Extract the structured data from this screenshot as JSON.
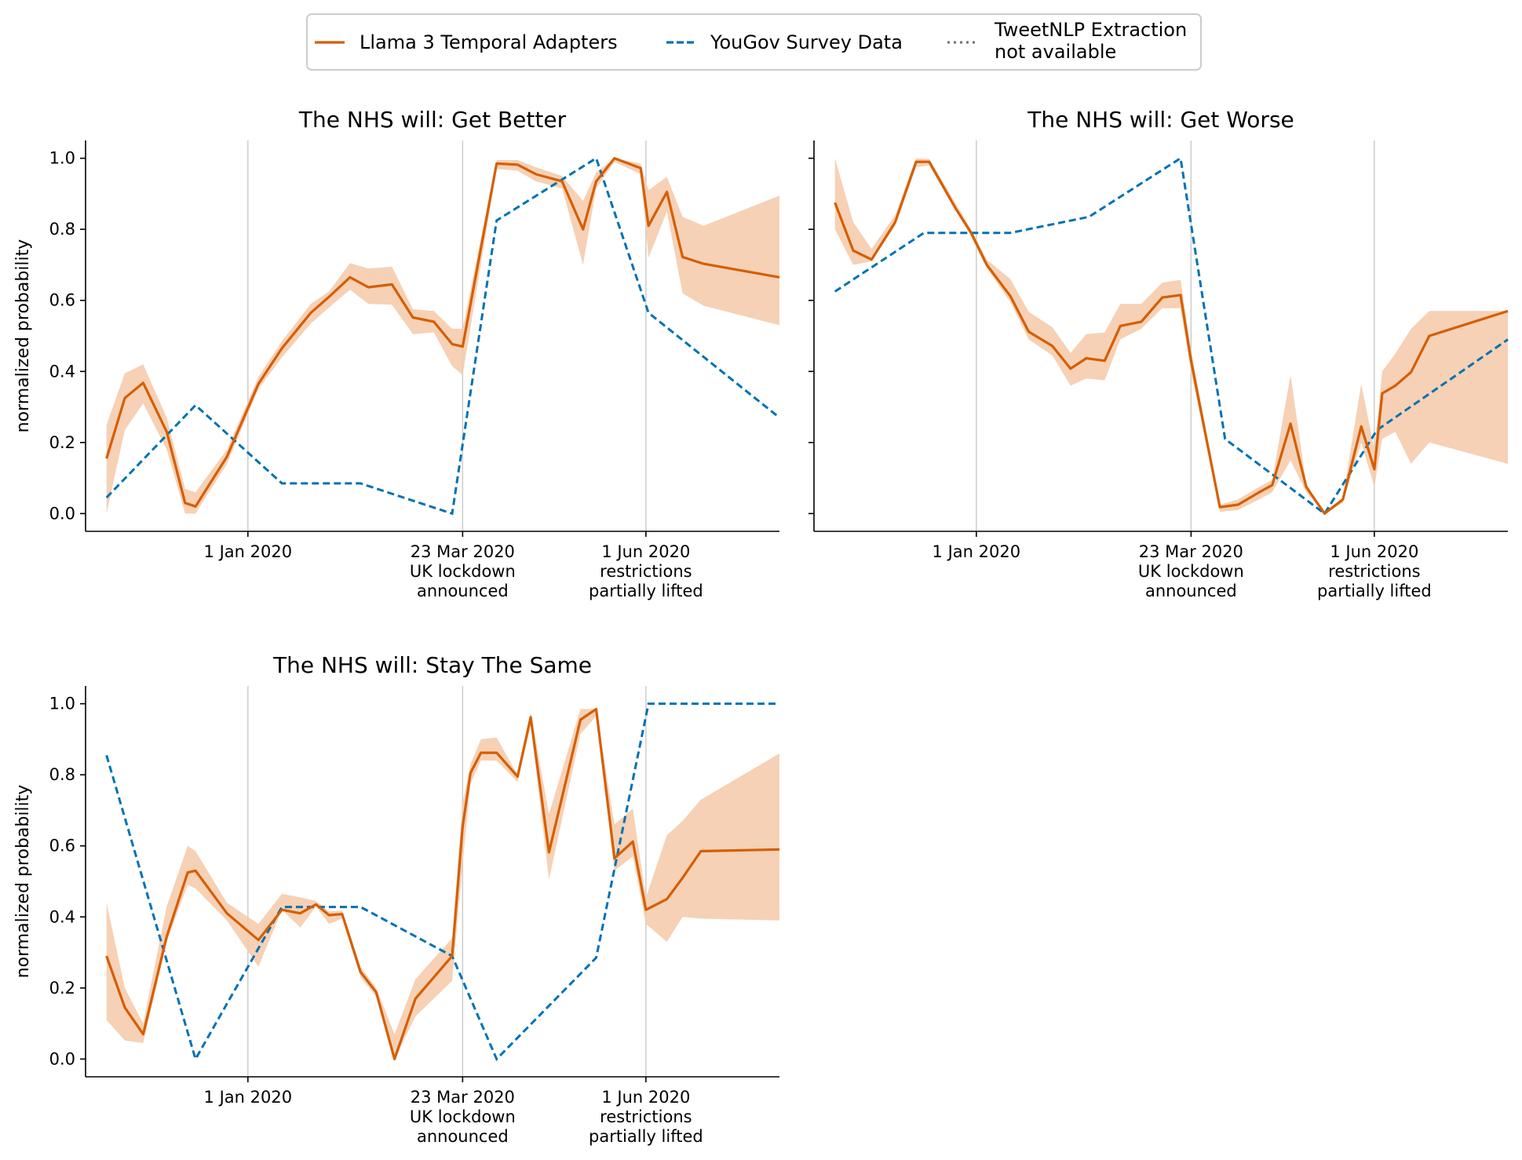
{
  "chart_data": {
    "type": "line",
    "legend": {
      "placement": "top-center",
      "entries": [
        {
          "label": "Llama 3 Temporal Adapters",
          "style": "solid",
          "color": "#d55e00"
        },
        {
          "label": "YouGov Survey Data",
          "style": "dashed",
          "color": "#0072b2"
        },
        {
          "label_lines": [
            "TweetNLP Extraction",
            "not available"
          ],
          "style": "dotted",
          "color": "#777777"
        }
      ]
    },
    "colors": {
      "llama": "#d55e00",
      "band": "#f4c9a8",
      "yougov": "#0072b2",
      "vline": "#cccccc"
    },
    "ylabel": "normalized probability",
    "ylim": [
      -0.05,
      1.05
    ],
    "yticks": [
      "0.0",
      "0.2",
      "0.4",
      "0.6",
      "0.8",
      "1.0"
    ],
    "xlim": [
      "2019-10-31",
      "2020-07-22"
    ],
    "events": [
      {
        "date": "2020-01-01",
        "label_lines": [
          "1 Jan 2020"
        ]
      },
      {
        "date": "2020-03-23",
        "label_lines": [
          "23 Mar 2020",
          "UK lockdown",
          "announced"
        ]
      },
      {
        "date": "2020-06-01",
        "label_lines": [
          "1 Jun 2020",
          "restrictions",
          "partially lifted"
        ]
      }
    ],
    "panels": [
      {
        "title": "The NHS will: Get Better",
        "llama": {
          "x": [
            "2019-11-08",
            "2019-11-15",
            "2019-11-22",
            "2019-12-01",
            "2019-12-08",
            "2019-12-12",
            "2019-12-24",
            "2020-01-05",
            "2020-01-14",
            "2020-01-25",
            "2020-02-01",
            "2020-02-09",
            "2020-02-16",
            "2020-02-25",
            "2020-03-04",
            "2020-03-12",
            "2020-03-19",
            "2020-03-23",
            "2020-04-05",
            "2020-04-13",
            "2020-04-20",
            "2020-04-30",
            "2020-05-08",
            "2020-05-13",
            "2020-05-20",
            "2020-05-30",
            "2020-06-02",
            "2020-06-09",
            "2020-06-15",
            "2020-06-23",
            "2020-07-22"
          ],
          "y": [
            0.155,
            0.325,
            0.368,
            0.23,
            0.03,
            0.02,
            0.16,
            0.365,
            0.465,
            0.565,
            0.61,
            0.665,
            0.637,
            0.645,
            0.552,
            0.54,
            0.477,
            0.47,
            0.985,
            0.982,
            0.955,
            0.935,
            0.8,
            0.935,
            1.0,
            0.972,
            0.81,
            0.905,
            0.722,
            0.703,
            0.665
          ],
          "lo": [
            0.0,
            0.235,
            0.31,
            0.18,
            0.0,
            0.0,
            0.14,
            0.35,
            0.44,
            0.535,
            0.58,
            0.63,
            0.59,
            0.588,
            0.505,
            0.51,
            0.415,
            0.39,
            0.97,
            0.965,
            0.935,
            0.915,
            0.7,
            0.915,
            0.99,
            0.955,
            0.72,
            0.85,
            0.62,
            0.585,
            0.53
          ],
          "hi": [
            0.25,
            0.395,
            0.42,
            0.27,
            0.07,
            0.06,
            0.18,
            0.385,
            0.485,
            0.59,
            0.625,
            0.705,
            0.69,
            0.695,
            0.575,
            0.57,
            0.52,
            0.52,
            0.995,
            0.995,
            0.975,
            0.95,
            0.88,
            0.96,
            1.0,
            0.985,
            0.91,
            0.948,
            0.835,
            0.81,
            0.895
          ]
        },
        "yougov": {
          "x": [
            "2019-11-08",
            "2019-12-12",
            "2020-01-14",
            "2020-02-13",
            "2020-03-19",
            "2020-04-05",
            "2020-05-13",
            "2020-06-02",
            "2020-07-22"
          ],
          "y": [
            0.045,
            0.305,
            0.085,
            0.085,
            0.0,
            0.825,
            1.0,
            0.565,
            0.27
          ]
        }
      },
      {
        "title": "The NHS will: Get Worse",
        "llama": {
          "x": [
            "2019-11-08",
            "2019-11-15",
            "2019-11-22",
            "2019-12-01",
            "2019-12-09",
            "2019-12-14",
            "2019-12-24",
            "2019-12-30",
            "2020-01-05",
            "2020-01-14",
            "2020-01-21",
            "2020-01-30",
            "2020-02-06",
            "2020-02-12",
            "2020-02-19",
            "2020-02-25",
            "2020-03-04",
            "2020-03-12",
            "2020-03-19",
            "2020-03-23",
            "2020-04-03",
            "2020-04-10",
            "2020-04-18",
            "2020-04-23",
            "2020-04-30",
            "2020-05-06",
            "2020-05-13",
            "2020-05-20",
            "2020-05-27",
            "2020-06-01",
            "2020-06-04",
            "2020-06-09",
            "2020-06-15",
            "2020-06-22",
            "2020-07-22"
          ],
          "y": [
            0.875,
            0.74,
            0.715,
            0.82,
            0.99,
            0.99,
            0.86,
            0.79,
            0.7,
            0.612,
            0.512,
            0.472,
            0.408,
            0.437,
            0.43,
            0.528,
            0.54,
            0.608,
            0.615,
            0.43,
            0.018,
            0.025,
            0.06,
            0.08,
            0.253,
            0.075,
            0.0,
            0.04,
            0.245,
            0.125,
            0.338,
            0.36,
            0.398,
            0.5,
            0.57
          ],
          "lo": [
            0.8,
            0.7,
            0.71,
            0.81,
            0.975,
            0.98,
            0.855,
            0.78,
            0.69,
            0.595,
            0.49,
            0.445,
            0.36,
            0.38,
            0.375,
            0.49,
            0.52,
            0.578,
            0.578,
            0.4,
            0.005,
            0.01,
            0.04,
            0.06,
            0.15,
            0.06,
            0.0,
            0.03,
            0.2,
            0.075,
            0.21,
            0.23,
            0.14,
            0.2,
            0.14
          ],
          "hi": [
            1.0,
            0.82,
            0.745,
            0.84,
            1.0,
            0.998,
            0.875,
            0.8,
            0.715,
            0.66,
            0.568,
            0.525,
            0.452,
            0.505,
            0.51,
            0.59,
            0.59,
            0.65,
            0.658,
            0.46,
            0.025,
            0.04,
            0.075,
            0.095,
            0.39,
            0.085,
            0.0,
            0.045,
            0.365,
            0.18,
            0.4,
            0.45,
            0.52,
            0.57,
            0.57
          ]
        },
        "yougov": {
          "x": [
            "2019-11-08",
            "2019-12-12",
            "2020-01-14",
            "2020-02-13",
            "2020-03-19",
            "2020-04-05",
            "2020-05-13",
            "2020-06-02",
            "2020-07-22"
          ],
          "y": [
            0.625,
            0.79,
            0.79,
            0.835,
            1.0,
            0.21,
            0.0,
            0.235,
            0.49
          ]
        }
      },
      {
        "title": "The NHS will: Stay The Same",
        "llama": {
          "x": [
            "2019-11-08",
            "2019-11-15",
            "2019-11-22",
            "2019-12-01",
            "2019-12-09",
            "2019-12-12",
            "2019-12-24",
            "2020-01-05",
            "2020-01-14",
            "2020-01-21",
            "2020-01-27",
            "2020-02-01",
            "2020-02-06",
            "2020-02-13",
            "2020-02-19",
            "2020-02-26",
            "2020-03-05",
            "2020-03-19",
            "2020-03-23",
            "2020-03-26",
            "2020-03-30",
            "2020-04-05",
            "2020-04-13",
            "2020-04-18",
            "2020-04-25",
            "2020-05-07",
            "2020-05-13",
            "2020-05-20",
            "2020-05-27",
            "2020-06-01",
            "2020-06-09",
            "2020-06-15",
            "2020-06-22",
            "2020-07-22"
          ],
          "y": [
            0.29,
            0.145,
            0.07,
            0.345,
            0.525,
            0.53,
            0.41,
            0.335,
            0.42,
            0.41,
            0.435,
            0.405,
            0.408,
            0.245,
            0.188,
            0.0,
            0.17,
            0.29,
            0.655,
            0.805,
            0.862,
            0.862,
            0.795,
            0.962,
            0.582,
            0.955,
            0.985,
            0.565,
            0.612,
            0.42,
            0.45,
            0.51,
            0.585,
            0.59
          ],
          "lo": [
            0.11,
            0.052,
            0.045,
            0.33,
            0.49,
            0.48,
            0.39,
            0.26,
            0.42,
            0.37,
            0.43,
            0.38,
            0.395,
            0.23,
            0.175,
            0.0,
            0.12,
            0.22,
            0.55,
            0.775,
            0.84,
            0.84,
            0.78,
            0.94,
            0.505,
            0.915,
            0.965,
            0.53,
            0.57,
            0.38,
            0.33,
            0.4,
            0.395,
            0.39
          ],
          "hi": [
            0.44,
            0.2,
            0.1,
            0.43,
            0.6,
            0.585,
            0.44,
            0.38,
            0.465,
            0.455,
            0.445,
            0.415,
            0.418,
            0.26,
            0.2,
            0.07,
            0.225,
            0.34,
            0.72,
            0.83,
            0.9,
            0.905,
            0.8,
            0.975,
            0.69,
            0.985,
            0.985,
            0.66,
            0.705,
            0.455,
            0.63,
            0.67,
            0.73,
            0.86
          ]
        },
        "yougov": {
          "x": [
            "2019-11-08",
            "2019-12-12",
            "2020-01-14",
            "2020-02-13",
            "2020-03-19",
            "2020-04-05",
            "2020-05-13",
            "2020-06-02",
            "2020-07-22"
          ],
          "y": [
            0.855,
            0.0,
            0.428,
            0.428,
            0.29,
            0.0,
            0.285,
            1.0,
            1.0
          ]
        }
      }
    ]
  }
}
